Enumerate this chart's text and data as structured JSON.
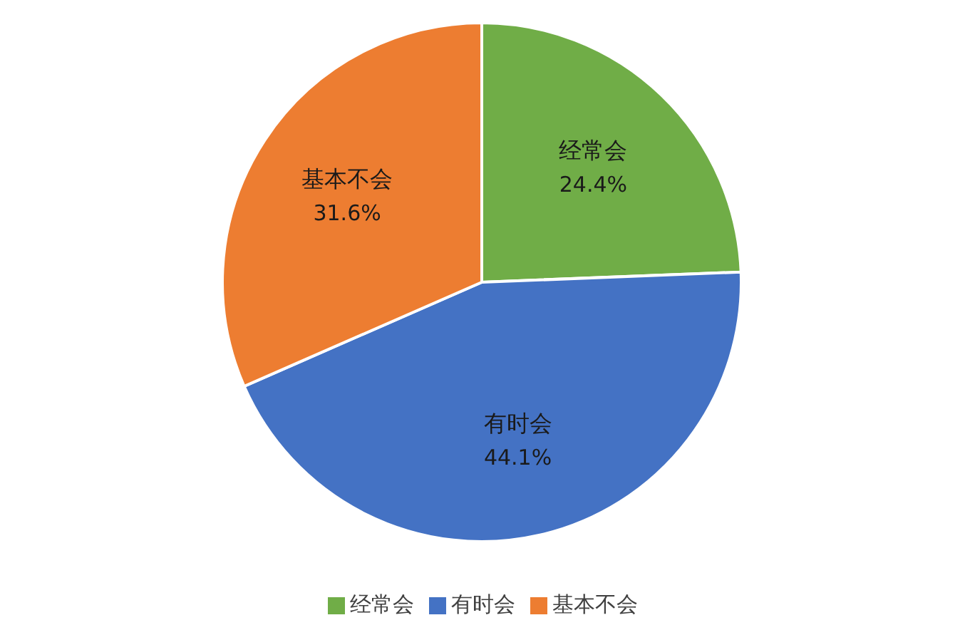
{
  "chart_data": {
    "type": "pie",
    "categories": [
      "经常会",
      "有时会",
      "基本不会"
    ],
    "values": [
      24.4,
      44.1,
      31.6
    ],
    "colors": [
      "#70ad47",
      "#4472c4",
      "#ed7d31"
    ],
    "value_labels": [
      "24.4%",
      "44.1%",
      "31.6%"
    ],
    "legend": "bottom"
  }
}
